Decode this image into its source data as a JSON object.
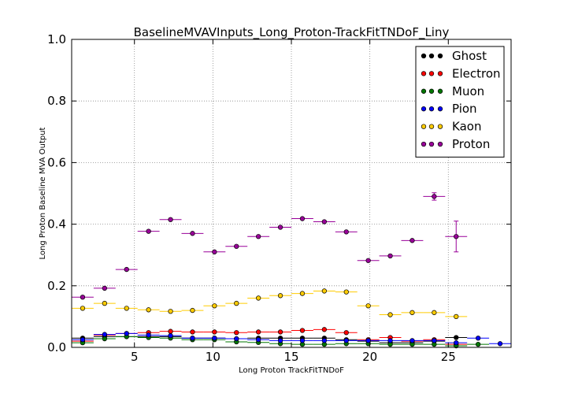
{
  "chart_data": {
    "type": "scatter",
    "title": "BaselineMVAVInputs_Long_Proton-TrackFitTNDoF_Liny",
    "xlabel": "Long Proton TrackFitTNDoF",
    "ylabel": "Long Proton Baseline MVA Output",
    "xlim": [
      1,
      29
    ],
    "ylim": [
      0,
      1
    ],
    "xticks": [
      5,
      10,
      15,
      20,
      25
    ],
    "xtick_labels": [
      "5",
      "10",
      "15",
      "20",
      "25"
    ],
    "yticks": [
      0,
      0.2,
      0.4,
      0.6,
      0.8,
      1.0
    ],
    "ytick_labels": [
      "0.0",
      "0.2",
      "0.4",
      "0.6",
      "0.8",
      "1.0"
    ],
    "grid": true,
    "legend_position": "top-right",
    "bin_half_width": 0.7,
    "series": [
      {
        "name": "Ghost",
        "color": "#000000",
        "x": [
          1.7,
          3.1,
          4.5,
          5.9,
          7.3,
          8.7,
          10.1,
          11.5,
          12.9,
          14.3,
          15.7,
          17.1,
          18.5,
          19.9,
          21.3,
          22.7,
          24.1,
          25.5
        ],
        "y": [
          0.03,
          0.035,
          0.035,
          0.035,
          0.035,
          0.03,
          0.03,
          0.028,
          0.03,
          0.03,
          0.03,
          0.03,
          0.025,
          0.02,
          0.015,
          0.015,
          0.02,
          0.032
        ]
      },
      {
        "name": "Electron",
        "color": "#ff0000",
        "x": [
          1.7,
          3.1,
          4.5,
          5.9,
          7.3,
          8.7,
          10.1,
          11.5,
          12.9,
          14.3,
          15.7,
          17.1,
          18.5,
          19.9,
          21.3,
          22.7,
          24.1,
          25.5
        ],
        "y": [
          0.02,
          0.04,
          0.045,
          0.048,
          0.052,
          0.05,
          0.05,
          0.048,
          0.05,
          0.05,
          0.055,
          0.058,
          0.048,
          0.025,
          0.032,
          0.02,
          0.025,
          0.01
        ]
      },
      {
        "name": "Muon",
        "color": "#007700",
        "x": [
          1.7,
          3.1,
          4.5,
          5.9,
          7.3,
          8.7,
          10.1,
          11.5,
          12.9,
          14.3,
          15.7,
          17.1,
          18.5,
          19.9,
          21.3,
          22.7,
          24.1,
          25.5,
          26.9
        ],
        "y": [
          0.015,
          0.028,
          0.035,
          0.032,
          0.03,
          0.025,
          0.025,
          0.018,
          0.016,
          0.012,
          0.01,
          0.01,
          0.012,
          0.012,
          0.01,
          0.01,
          0.01,
          0.005,
          0.01
        ]
      },
      {
        "name": "Pion",
        "color": "#0000ff",
        "x": [
          1.7,
          3.1,
          4.5,
          5.9,
          7.3,
          8.7,
          10.1,
          11.5,
          12.9,
          14.3,
          15.7,
          17.1,
          18.5,
          19.9,
          21.3,
          22.7,
          24.1,
          25.5,
          26.9,
          28.3
        ],
        "y": [
          0.025,
          0.042,
          0.045,
          0.04,
          0.038,
          0.03,
          0.03,
          0.028,
          0.025,
          0.022,
          0.022,
          0.022,
          0.022,
          0.022,
          0.022,
          0.022,
          0.022,
          0.015,
          0.03,
          0.012
        ]
      },
      {
        "name": "Kaon",
        "color": "#ffcc00",
        "x": [
          1.7,
          3.1,
          4.5,
          5.9,
          7.3,
          8.7,
          10.1,
          11.5,
          12.9,
          14.3,
          15.7,
          17.1,
          18.5,
          19.9,
          21.3,
          22.7,
          24.1,
          25.5
        ],
        "y": [
          0.127,
          0.143,
          0.127,
          0.122,
          0.117,
          0.12,
          0.135,
          0.143,
          0.16,
          0.168,
          0.175,
          0.183,
          0.18,
          0.135,
          0.106,
          0.113,
          0.113,
          0.1
        ]
      },
      {
        "name": "Proton",
        "color": "#990099",
        "x": [
          1.7,
          3.1,
          4.5,
          5.9,
          7.3,
          8.7,
          10.1,
          11.5,
          12.9,
          14.3,
          15.7,
          17.1,
          18.5,
          19.9,
          21.3,
          22.7,
          24.1,
          25.5
        ],
        "y": [
          0.163,
          0.192,
          0.253,
          0.377,
          0.415,
          0.37,
          0.31,
          0.328,
          0.36,
          0.39,
          0.418,
          0.408,
          0.375,
          0.282,
          0.297,
          0.347,
          0.49,
          0.36
        ],
        "yerr": [
          0,
          0,
          0,
          0,
          0,
          0,
          0,
          0,
          0,
          0,
          0,
          0,
          0,
          0,
          0,
          0,
          0.012,
          0.05
        ]
      }
    ]
  }
}
